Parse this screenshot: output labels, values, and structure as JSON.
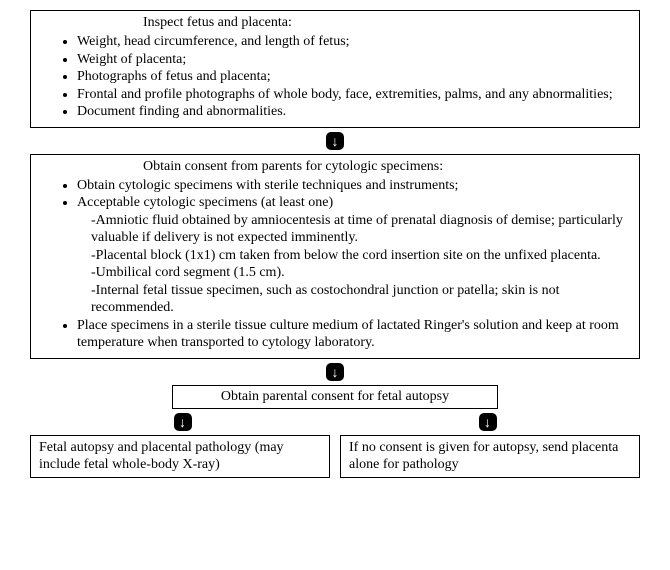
{
  "type": "flowchart",
  "colors": {
    "background": "#ffffff",
    "border": "#000000",
    "text": "#000000",
    "arrow_bg": "#000000",
    "arrow_fg": "#ffffff"
  },
  "typography": {
    "font_family": "Times New Roman",
    "base_fontsize": 14
  },
  "arrow_glyph": "↓",
  "box1": {
    "title": "Inspect fetus and placenta:",
    "items": [
      "Weight, head circumference, and length of fetus;",
      "Weight of placenta;",
      "Photographs of fetus and placenta;",
      "Frontal and profile photographs of whole body, face, extremities, palms, and any abnormalities;",
      "Document finding and abnormalities."
    ]
  },
  "box2": {
    "title": "Obtain consent from parents for cytologic specimens:",
    "item1": "Obtain cytologic specimens with sterile techniques and instruments;",
    "item2": "Acceptable cytologic specimens (at least one)",
    "sub1": "-Amniotic fluid obtained by amniocentesis at time of prenatal diagnosis of demise; particularly valuable if delivery is not expected imminently.",
    "sub2": "-Placental block (1x1) cm taken from below the cord insertion site on the unfixed placenta.",
    "sub3": "-Umbilical cord segment (1.5 cm).",
    "sub4": "-Internal fetal tissue specimen, such as costochondral junction or patella; skin is not recommended.",
    "item3": "Place specimens in a sterile tissue culture medium of lactated Ringer's solution and keep at room temperature when transported to cytology laboratory."
  },
  "box3": {
    "text": "Obtain parental consent for fetal autopsy"
  },
  "box4a": {
    "text": "Fetal autopsy and placental pathology (may include fetal whole-body X-ray)"
  },
  "box4b": {
    "text": "If no consent is given for autopsy, send placenta alone for pathology"
  }
}
